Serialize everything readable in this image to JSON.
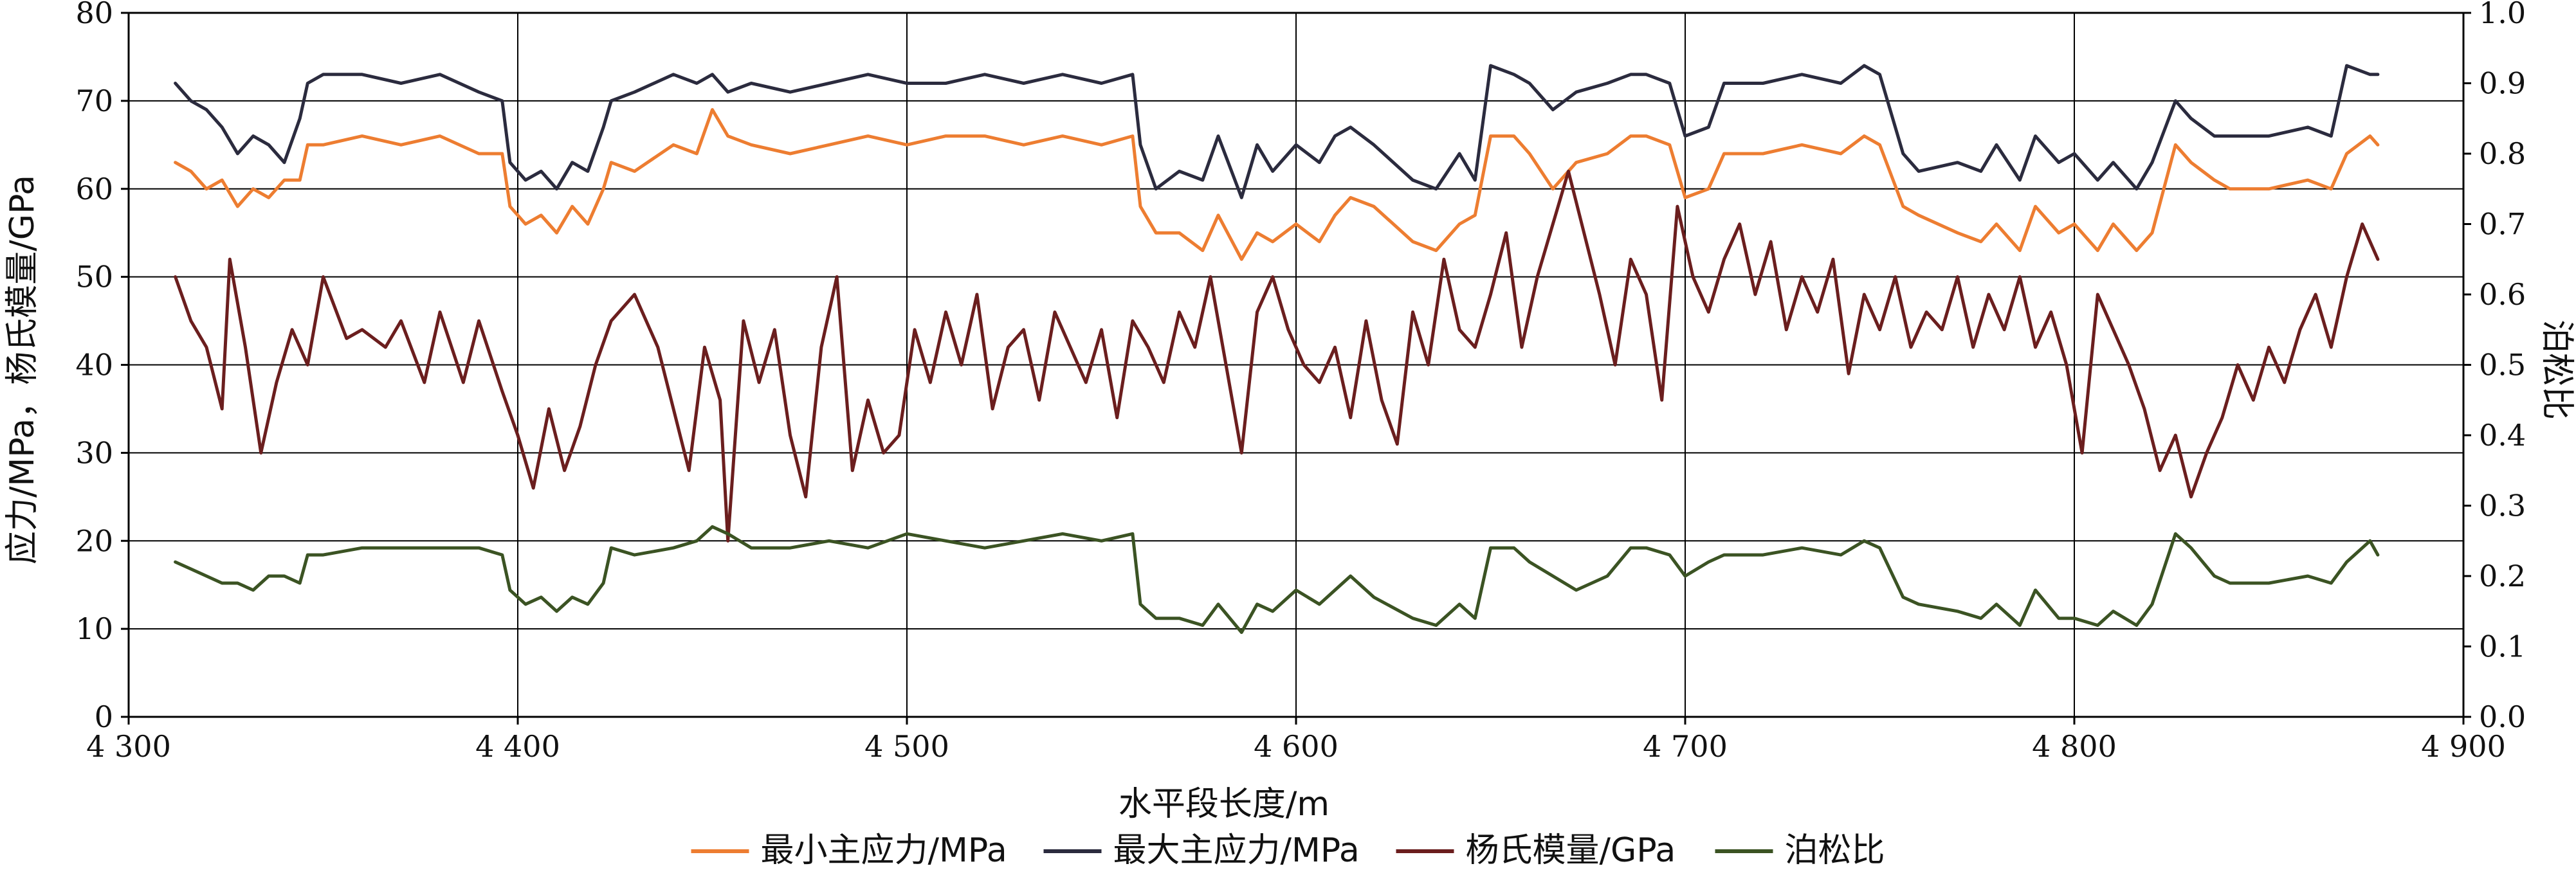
{
  "chart_data": {
    "type": "line",
    "xlabel": "水平段长度/m",
    "ylabel_left": "应力/MPa，杨氏模量/GPa",
    "ylabel_right": "泊松比",
    "xlim": [
      4300,
      4900
    ],
    "ylim_left": [
      0,
      80
    ],
    "ylim_right": [
      0.0,
      1.0
    ],
    "x_ticks": [
      4300,
      4400,
      4500,
      4600,
      4700,
      4800,
      4900
    ],
    "x_tick_labels": [
      "4 300",
      "4 400",
      "4 500",
      "4 600",
      "4 700",
      "4 800",
      "4 900"
    ],
    "y_left_ticks": [
      0,
      10,
      20,
      30,
      40,
      50,
      60,
      70,
      80
    ],
    "y_left_tick_labels": [
      "0",
      "10",
      "20",
      "30",
      "40",
      "50",
      "60",
      "70",
      "80"
    ],
    "y_right_ticks": [
      0.0,
      0.1,
      0.2,
      0.3,
      0.4,
      0.5,
      0.6,
      0.7,
      0.8,
      0.9,
      1.0
    ],
    "y_right_tick_labels": [
      "0.0",
      "0.1",
      "0.2",
      "0.3",
      "0.4",
      "0.5",
      "0.6",
      "0.7",
      "0.8",
      "0.9",
      "1.0"
    ],
    "grid": true,
    "legend_position": "bottom",
    "series": [
      {
        "name": "最小主应力/MPa",
        "axis": "left",
        "color": "#ED7D31",
        "x": [
          4312,
          4316,
          4320,
          4324,
          4328,
          4332,
          4336,
          4340,
          4344,
          4346,
          4350,
          4360,
          4370,
          4380,
          4390,
          4396,
          4398,
          4402,
          4406,
          4410,
          4414,
          4418,
          4422,
          4424,
          4430,
          4440,
          4446,
          4450,
          4454,
          4460,
          4470,
          4480,
          4490,
          4500,
          4510,
          4520,
          4530,
          4540,
          4550,
          4558,
          4560,
          4564,
          4570,
          4576,
          4580,
          4586,
          4590,
          4594,
          4600,
          4606,
          4610,
          4614,
          4620,
          4630,
          4636,
          4642,
          4646,
          4650,
          4656,
          4660,
          4666,
          4672,
          4680,
          4686,
          4690,
          4696,
          4700,
          4706,
          4710,
          4720,
          4730,
          4740,
          4746,
          4750,
          4756,
          4760,
          4770,
          4776,
          4780,
          4786,
          4790,
          4796,
          4800,
          4806,
          4810,
          4816,
          4820,
          4826,
          4830,
          4836,
          4840,
          4850,
          4860,
          4866,
          4870,
          4876,
          4878
        ],
        "y": [
          63,
          62,
          60,
          61,
          58,
          60,
          59,
          61,
          61,
          65,
          65,
          66,
          65,
          66,
          64,
          64,
          58,
          56,
          57,
          55,
          58,
          56,
          60,
          63,
          62,
          65,
          64,
          69,
          66,
          65,
          64,
          65,
          66,
          65,
          66,
          66,
          65,
          66,
          65,
          66,
          58,
          55,
          55,
          53,
          57,
          52,
          55,
          54,
          56,
          54,
          57,
          59,
          58,
          54,
          53,
          56,
          57,
          66,
          66,
          64,
          60,
          63,
          64,
          66,
          66,
          65,
          59,
          60,
          64,
          64,
          65,
          64,
          66,
          65,
          58,
          57,
          55,
          54,
          56,
          53,
          58,
          55,
          56,
          53,
          56,
          53,
          55,
          65,
          63,
          61,
          60,
          60,
          61,
          60,
          64,
          66,
          65
        ]
      },
      {
        "name": "最大主应力/MPa",
        "axis": "left",
        "color": "#2B2B3E",
        "x": [
          4312,
          4316,
          4320,
          4324,
          4328,
          4332,
          4336,
          4340,
          4344,
          4346,
          4350,
          4360,
          4370,
          4380,
          4390,
          4396,
          4398,
          4402,
          4406,
          4410,
          4414,
          4418,
          4422,
          4424,
          4430,
          4440,
          4446,
          4450,
          4454,
          4460,
          4470,
          4480,
          4490,
          4500,
          4510,
          4520,
          4530,
          4540,
          4550,
          4558,
          4560,
          4564,
          4570,
          4576,
          4580,
          4586,
          4590,
          4594,
          4600,
          4606,
          4610,
          4614,
          4620,
          4630,
          4636,
          4642,
          4646,
          4650,
          4656,
          4660,
          4666,
          4672,
          4680,
          4686,
          4690,
          4696,
          4700,
          4706,
          4710,
          4720,
          4730,
          4740,
          4746,
          4750,
          4756,
          4760,
          4770,
          4776,
          4780,
          4786,
          4790,
          4796,
          4800,
          4806,
          4810,
          4816,
          4820,
          4826,
          4830,
          4836,
          4840,
          4850,
          4860,
          4866,
          4870,
          4876,
          4878
        ],
        "y": [
          72,
          70,
          69,
          67,
          64,
          66,
          65,
          63,
          68,
          72,
          73,
          73,
          72,
          73,
          71,
          70,
          63,
          61,
          62,
          60,
          63,
          62,
          67,
          70,
          71,
          73,
          72,
          73,
          71,
          72,
          71,
          72,
          73,
          72,
          72,
          73,
          72,
          73,
          72,
          73,
          65,
          60,
          62,
          61,
          66,
          59,
          65,
          62,
          65,
          63,
          66,
          67,
          65,
          61,
          60,
          64,
          61,
          74,
          73,
          72,
          69,
          71,
          72,
          73,
          73,
          72,
          66,
          67,
          72,
          72,
          73,
          72,
          74,
          73,
          64,
          62,
          63,
          62,
          65,
          61,
          66,
          63,
          64,
          61,
          63,
          60,
          63,
          70,
          68,
          66,
          66,
          66,
          67,
          66,
          74,
          73,
          73
        ]
      },
      {
        "name": "杨氏模量/GPa",
        "axis": "left",
        "color": "#6B1E1E",
        "x": [
          4312,
          4316,
          4320,
          4324,
          4326,
          4330,
          4334,
          4338,
          4342,
          4346,
          4350,
          4356,
          4360,
          4366,
          4370,
          4376,
          4380,
          4386,
          4390,
          4396,
          4400,
          4404,
          4408,
          4412,
          4416,
          4420,
          4424,
          4430,
          4436,
          4440,
          4444,
          4448,
          4452,
          4454,
          4458,
          4462,
          4466,
          4470,
          4474,
          4478,
          4482,
          4486,
          4490,
          4494,
          4498,
          4502,
          4506,
          4510,
          4514,
          4518,
          4522,
          4526,
          4530,
          4534,
          4538,
          4542,
          4546,
          4550,
          4554,
          4558,
          4562,
          4566,
          4570,
          4574,
          4578,
          4582,
          4586,
          4590,
          4594,
          4598,
          4602,
          4606,
          4610,
          4614,
          4618,
          4622,
          4626,
          4630,
          4634,
          4638,
          4642,
          4646,
          4650,
          4654,
          4658,
          4662,
          4666,
          4670,
          4674,
          4678,
          4682,
          4686,
          4690,
          4694,
          4698,
          4702,
          4706,
          4710,
          4714,
          4718,
          4722,
          4726,
          4730,
          4734,
          4738,
          4742,
          4746,
          4750,
          4754,
          4758,
          4762,
          4766,
          4770,
          4774,
          4778,
          4782,
          4786,
          4790,
          4794,
          4798,
          4802,
          4806,
          4810,
          4814,
          4818,
          4822,
          4826,
          4830,
          4834,
          4838,
          4842,
          4846,
          4850,
          4854,
          4858,
          4862,
          4866,
          4870,
          4874,
          4878
        ],
        "y": [
          50,
          45,
          42,
          35,
          52,
          42,
          30,
          38,
          44,
          40,
          50,
          43,
          44,
          42,
          45,
          38,
          46,
          38,
          45,
          37,
          32,
          26,
          35,
          28,
          33,
          40,
          45,
          48,
          42,
          35,
          28,
          42,
          36,
          20,
          45,
          38,
          44,
          32,
          25,
          42,
          50,
          28,
          36,
          30,
          32,
          44,
          38,
          46,
          40,
          48,
          35,
          42,
          44,
          36,
          46,
          42,
          38,
          44,
          34,
          45,
          42,
          38,
          46,
          42,
          50,
          40,
          30,
          46,
          50,
          44,
          40,
          38,
          42,
          34,
          45,
          36,
          31,
          46,
          40,
          52,
          44,
          42,
          48,
          55,
          42,
          50,
          56,
          62,
          55,
          48,
          40,
          52,
          48,
          36,
          58,
          50,
          46,
          52,
          56,
          48,
          54,
          44,
          50,
          46,
          52,
          39,
          48,
          44,
          50,
          42,
          46,
          44,
          50,
          42,
          48,
          44,
          50,
          42,
          46,
          40,
          30,
          48,
          44,
          40,
          35,
          28,
          32,
          25,
          30,
          34,
          40,
          36,
          42,
          38,
          44,
          48,
          42,
          50,
          56,
          52
        ]
      },
      {
        "name": "泊松比",
        "axis": "right",
        "color": "#3B5323",
        "x": [
          4312,
          4316,
          4320,
          4324,
          4328,
          4332,
          4336,
          4340,
          4344,
          4346,
          4350,
          4360,
          4370,
          4380,
          4390,
          4396,
          4398,
          4402,
          4406,
          4410,
          4414,
          4418,
          4422,
          4424,
          4430,
          4440,
          4446,
          4450,
          4454,
          4460,
          4470,
          4480,
          4490,
          4500,
          4510,
          4520,
          4530,
          4540,
          4550,
          4558,
          4560,
          4564,
          4570,
          4576,
          4580,
          4586,
          4590,
          4594,
          4600,
          4606,
          4610,
          4614,
          4620,
          4630,
          4636,
          4642,
          4646,
          4650,
          4656,
          4660,
          4666,
          4672,
          4680,
          4686,
          4690,
          4696,
          4700,
          4706,
          4710,
          4720,
          4730,
          4740,
          4746,
          4750,
          4756,
          4760,
          4770,
          4776,
          4780,
          4786,
          4790,
          4796,
          4800,
          4806,
          4810,
          4816,
          4820,
          4826,
          4830,
          4836,
          4840,
          4850,
          4860,
          4866,
          4870,
          4876,
          4878
        ],
        "y": [
          0.22,
          0.21,
          0.2,
          0.19,
          0.19,
          0.18,
          0.2,
          0.2,
          0.19,
          0.23,
          0.23,
          0.24,
          0.24,
          0.24,
          0.24,
          0.23,
          0.18,
          0.16,
          0.17,
          0.15,
          0.17,
          0.16,
          0.19,
          0.24,
          0.23,
          0.24,
          0.25,
          0.27,
          0.26,
          0.24,
          0.24,
          0.25,
          0.24,
          0.26,
          0.25,
          0.24,
          0.25,
          0.26,
          0.25,
          0.26,
          0.16,
          0.14,
          0.14,
          0.13,
          0.16,
          0.12,
          0.16,
          0.15,
          0.18,
          0.16,
          0.18,
          0.2,
          0.17,
          0.14,
          0.13,
          0.16,
          0.14,
          0.24,
          0.24,
          0.22,
          0.2,
          0.18,
          0.2,
          0.24,
          0.24,
          0.23,
          0.2,
          0.22,
          0.23,
          0.23,
          0.24,
          0.23,
          0.25,
          0.24,
          0.17,
          0.16,
          0.15,
          0.14,
          0.16,
          0.13,
          0.18,
          0.14,
          0.14,
          0.13,
          0.15,
          0.13,
          0.16,
          0.26,
          0.24,
          0.2,
          0.19,
          0.19,
          0.2,
          0.19,
          0.22,
          0.25,
          0.23
        ]
      }
    ]
  }
}
